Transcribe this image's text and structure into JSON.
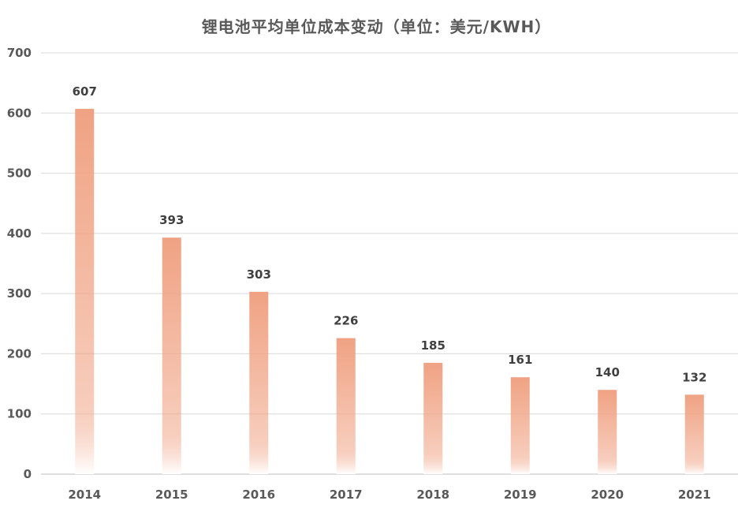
{
  "chart_data": {
    "type": "bar",
    "title": "锂电池平均单位成本变动（单位：美元/KWH）",
    "xlabel": "",
    "ylabel": "",
    "categories": [
      "2014",
      "2015",
      "2016",
      "2017",
      "2018",
      "2019",
      "2020",
      "2021"
    ],
    "values": [
      607,
      393,
      303,
      226,
      185,
      161,
      140,
      132
    ],
    "ylim": [
      0,
      700
    ],
    "yticks": [
      0,
      100,
      200,
      300,
      400,
      500,
      600,
      700
    ],
    "grid": true,
    "legend": "none",
    "data_labels": true,
    "bar_color": "#F0A283",
    "bar_fade_color": "#FFFFFF"
  }
}
